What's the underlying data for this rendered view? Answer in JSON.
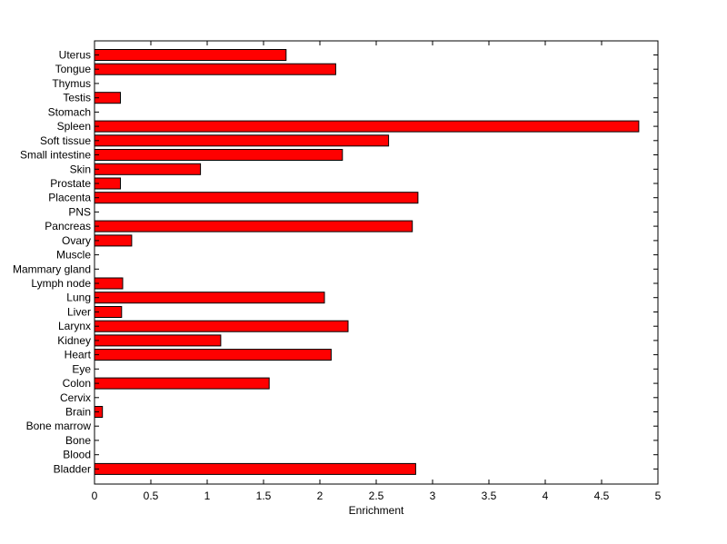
{
  "chart_data": {
    "type": "bar",
    "orientation": "horizontal",
    "categories": [
      "Uterus",
      "Tongue",
      "Thymus",
      "Testis",
      "Stomach",
      "Spleen",
      "Soft tissue",
      "Small intestine",
      "Skin",
      "Prostate",
      "Placenta",
      "PNS",
      "Pancreas",
      "Ovary",
      "Muscle",
      "Mammary gland",
      "Lymph node",
      "Lung",
      "Liver",
      "Larynx",
      "Kidney",
      "Heart",
      "Eye",
      "Colon",
      "Cervix",
      "Brain",
      "Bone marrow",
      "Bone",
      "Blood",
      "Bladder"
    ],
    "values": [
      1.7,
      2.14,
      0,
      0.23,
      0,
      4.83,
      2.61,
      2.2,
      0.94,
      0.23,
      2.87,
      0,
      2.82,
      0.33,
      0,
      0,
      0.25,
      2.04,
      0.24,
      2.25,
      1.12,
      2.1,
      0,
      1.55,
      0,
      0.07,
      0,
      0,
      0,
      2.85
    ],
    "xlabel": "Enrichment",
    "ylabel": "",
    "xlim": [
      0,
      5
    ],
    "xticks": [
      "0",
      "0.5",
      "1",
      "1.5",
      "2",
      "2.5",
      "3",
      "3.5",
      "4",
      "4.5",
      "5"
    ],
    "grid": false,
    "bar_color": "#ff0000"
  }
}
